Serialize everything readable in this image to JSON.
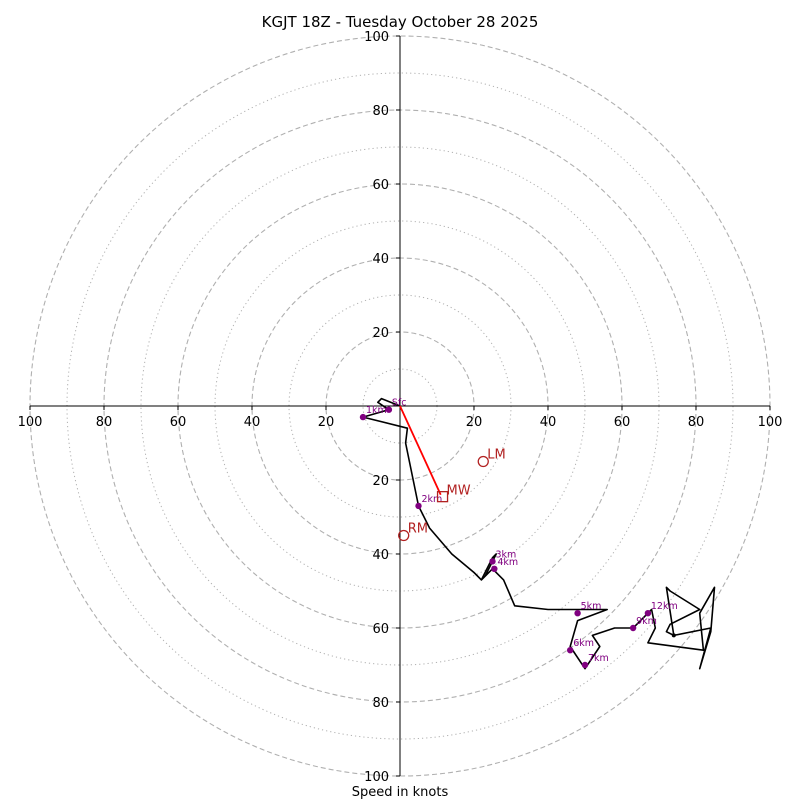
{
  "chart_data": {
    "type": "hodograph",
    "title": "KGJT 18Z - Tuesday October 28 2025",
    "xlabel": "Speed in knots",
    "range": [
      -100,
      100
    ],
    "rings_major": [
      20,
      40,
      60,
      80,
      100
    ],
    "rings_minor": [
      10,
      30,
      50,
      70,
      90
    ],
    "x_tick_labels": [
      "100",
      "80",
      "60",
      "40",
      "20",
      "20",
      "40",
      "60",
      "80",
      "100"
    ],
    "y_tick_labels": [
      "100",
      "80",
      "60",
      "40",
      "20",
      "20",
      "40",
      "60",
      "80",
      "100"
    ],
    "trace": [
      [
        0,
        0
      ],
      [
        -5,
        2
      ],
      [
        -6,
        1
      ],
      [
        -3,
        -1
      ],
      [
        -10,
        -3
      ],
      [
        2,
        -6
      ],
      [
        1.5,
        -10
      ],
      [
        5,
        -27
      ],
      [
        8,
        -33
      ],
      [
        14,
        -40
      ],
      [
        20,
        -45
      ],
      [
        22,
        -47
      ],
      [
        25,
        -41
      ],
      [
        26,
        -40
      ],
      [
        23,
        -46
      ],
      [
        22,
        -47
      ],
      [
        25,
        -44
      ],
      [
        28,
        -47
      ],
      [
        31,
        -54
      ],
      [
        40,
        -55
      ],
      [
        48,
        -55
      ],
      [
        56,
        -55
      ],
      [
        48,
        -58
      ],
      [
        46,
        -65
      ],
      [
        50,
        -71
      ],
      [
        54,
        -65
      ],
      [
        52,
        -62
      ],
      [
        58,
        -60
      ],
      [
        63,
        -60
      ],
      [
        68,
        -55
      ],
      [
        69,
        -60
      ],
      [
        67,
        -64
      ],
      [
        82,
        -66
      ],
      [
        81,
        -56
      ],
      [
        85,
        -49
      ],
      [
        84,
        -61
      ],
      [
        81,
        -71
      ],
      [
        84,
        -60
      ],
      [
        74,
        -62
      ],
      [
        72,
        -61
      ],
      [
        73,
        -59
      ],
      [
        81,
        -55
      ],
      [
        73,
        -50
      ],
      [
        72,
        -49
      ],
      [
        74,
        -62
      ]
    ],
    "height_markers": [
      {
        "label": "Sfc",
        "u": -3,
        "v": -1
      },
      {
        "label": "1km",
        "u": -10,
        "v": -3
      },
      {
        "label": "2km",
        "u": 5,
        "v": -27
      },
      {
        "label": "3km",
        "u": 25,
        "v": -42
      },
      {
        "label": "4km",
        "u": 25.5,
        "v": -44
      },
      {
        "label": "5km",
        "u": 48,
        "v": -56
      },
      {
        "label": "6km",
        "u": 46,
        "v": -66
      },
      {
        "label": "7km",
        "u": 50,
        "v": -70
      },
      {
        "label": "9km",
        "u": 63,
        "v": -60
      },
      {
        "label": "12km",
        "u": 67,
        "v": -56
      }
    ],
    "storm_motion": {
      "LM": {
        "label": "LM",
        "u": 22.5,
        "v": -15
      },
      "RM": {
        "label": "RM",
        "u": 1,
        "v": -35
      },
      "MW": {
        "label": "MW",
        "u": 11.5,
        "v": -24.5
      }
    },
    "shear_vector": {
      "from": [
        0,
        0
      ],
      "to": [
        11,
        -24
      ]
    },
    "colors": {
      "trace": "#000000",
      "markers": "#800080",
      "storm": "#b22222",
      "shear": "#ff0000",
      "grid": "#b0b0b0"
    }
  }
}
